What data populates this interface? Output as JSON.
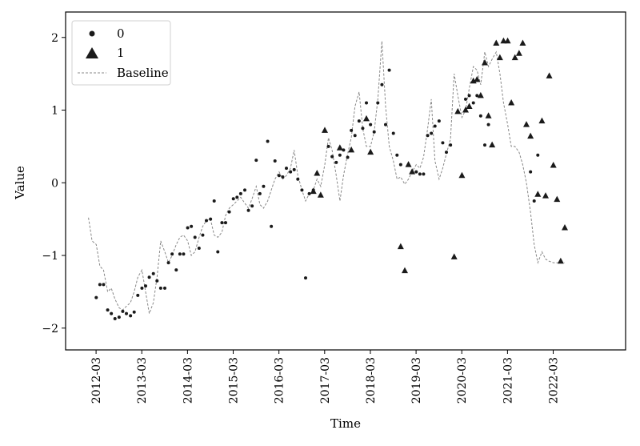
{
  "chart_data": {
    "type": "scatter",
    "title": "",
    "xlabel": "Time",
    "ylabel": "Value",
    "x_ticks": [
      "2012-03",
      "2013-03",
      "2014-03",
      "2015-03",
      "2016-03",
      "2017-03",
      "2018-03",
      "2019-03",
      "2020-03",
      "2021-03",
      "2022-03"
    ],
    "y_ticks": [
      "−2",
      "−1",
      "0",
      "1",
      "2"
    ],
    "x_range": [
      2011.5,
      2023.75
    ],
    "y_range": [
      -2.3,
      2.35
    ],
    "grid": false,
    "legend_position": "top-left",
    "legend": [
      "0",
      "1",
      "Baseline"
    ],
    "colors": {
      "marker": "#1a1a1a",
      "baseline": "#888888",
      "axis": "#000000"
    },
    "series": [
      {
        "name": "0",
        "marker": "circle",
        "x": [
          2012.17,
          2012.25,
          2012.33,
          2012.42,
          2012.5,
          2012.58,
          2012.67,
          2012.75,
          2012.83,
          2012.92,
          2013.0,
          2013.08,
          2013.17,
          2013.25,
          2013.33,
          2013.42,
          2013.5,
          2013.58,
          2013.67,
          2013.75,
          2013.83,
          2013.92,
          2014.0,
          2014.08,
          2014.17,
          2014.25,
          2014.33,
          2014.42,
          2014.5,
          2014.58,
          2014.67,
          2014.75,
          2014.83,
          2014.92,
          2015.0,
          2015.08,
          2015.17,
          2015.25,
          2015.33,
          2015.42,
          2015.5,
          2015.58,
          2015.67,
          2015.75,
          2015.83,
          2015.92,
          2016.0,
          2016.08,
          2016.17,
          2016.25,
          2016.33,
          2016.42,
          2016.5,
          2016.58,
          2016.67,
          2016.75,
          2016.83,
          2016.92,
          2017.25,
          2017.33,
          2017.42,
          2017.5,
          2017.58,
          2017.67,
          2017.75,
          2017.83,
          2017.92,
          2018.0,
          2018.08,
          2018.17,
          2018.25,
          2018.33,
          2018.42,
          2018.5,
          2018.58,
          2018.67,
          2018.75,
          2018.83,
          2019.17,
          2019.25,
          2019.33,
          2019.42,
          2019.5,
          2019.58,
          2019.67,
          2019.75,
          2019.83,
          2019.92,
          2020.25,
          2020.33,
          2020.42,
          2020.5,
          2020.58,
          2020.67,
          2020.75,
          2021.67,
          2021.75,
          2021.83
        ],
        "y": [
          -1.58,
          -1.4,
          -1.4,
          -1.75,
          -1.8,
          -1.87,
          -1.85,
          -1.77,
          -1.8,
          -1.83,
          -1.78,
          -1.55,
          -1.45,
          -1.42,
          -1.3,
          -1.25,
          -1.35,
          -1.45,
          -1.45,
          -1.1,
          -0.98,
          -1.2,
          -0.98,
          -0.98,
          -0.62,
          -0.6,
          -0.75,
          -0.9,
          -0.72,
          -0.52,
          -0.5,
          -0.25,
          -0.95,
          -0.55,
          -0.55,
          -0.4,
          -0.22,
          -0.2,
          -0.15,
          -0.1,
          -0.38,
          -0.32,
          0.31,
          -0.15,
          -0.05,
          0.57,
          -0.6,
          0.3,
          0.1,
          0.08,
          0.2,
          0.15,
          0.18,
          0.05,
          -0.1,
          -1.31,
          -0.15,
          -0.1,
          0.5,
          0.36,
          0.28,
          0.38,
          0.45,
          0.35,
          0.72,
          0.65,
          0.85,
          0.75,
          1.1,
          0.8,
          0.7,
          1.1,
          1.35,
          0.8,
          1.55,
          0.68,
          0.38,
          0.25,
          0.15,
          0.12,
          0.12,
          0.65,
          0.68,
          0.78,
          0.85,
          0.55,
          0.42,
          0.52,
          1.15,
          1.2,
          1.1,
          1.2,
          0.92,
          0.52,
          0.8,
          0.15,
          -0.25,
          0.38
        ]
      },
      {
        "name": "1",
        "marker": "triangle",
        "x": [
          2016.92,
          2017.0,
          2017.08,
          2017.17,
          2017.5,
          2017.75,
          2018.08,
          2018.17,
          2018.83,
          2018.92,
          2019.0,
          2019.08,
          2020.0,
          2020.08,
          2020.17,
          2020.25,
          2020.33,
          2020.42,
          2020.5,
          2020.58,
          2020.67,
          2020.75,
          2020.83,
          2020.92,
          2021.0,
          2021.08,
          2021.17,
          2021.25,
          2021.33,
          2021.42,
          2021.5,
          2021.58,
          2021.67,
          2021.83,
          2021.92,
          2022.0,
          2022.08,
          2022.17,
          2022.25,
          2022.33,
          2022.42
        ],
        "y": [
          -0.12,
          0.13,
          -0.17,
          0.72,
          0.48,
          0.45,
          0.88,
          0.42,
          -0.88,
          -1.21,
          0.25,
          0.15,
          -1.02,
          0.98,
          0.1,
          1.0,
          1.05,
          1.4,
          1.42,
          1.2,
          1.65,
          0.92,
          0.52,
          1.92,
          1.72,
          1.95,
          1.95,
          1.1,
          1.72,
          1.78,
          1.92,
          0.8,
          0.64,
          -0.16,
          0.85,
          -0.18,
          1.47,
          0.24,
          -0.23,
          -1.08,
          -0.62
        ]
      },
      {
        "name": "Baseline",
        "marker": "dashed-line",
        "x": [
          2012.0,
          2012.08,
          2012.17,
          2012.25,
          2012.33,
          2012.42,
          2012.5,
          2012.58,
          2012.67,
          2012.75,
          2012.83,
          2012.92,
          2013.0,
          2013.08,
          2013.17,
          2013.25,
          2013.33,
          2013.42,
          2013.5,
          2013.58,
          2013.67,
          2013.75,
          2013.83,
          2013.92,
          2014.0,
          2014.08,
          2014.17,
          2014.25,
          2014.33,
          2014.42,
          2014.5,
          2014.58,
          2014.67,
          2014.75,
          2014.83,
          2014.92,
          2015.0,
          2015.08,
          2015.17,
          2015.25,
          2015.33,
          2015.42,
          2015.5,
          2015.58,
          2015.67,
          2015.75,
          2015.83,
          2015.92,
          2016.0,
          2016.08,
          2016.17,
          2016.25,
          2016.33,
          2016.42,
          2016.5,
          2016.58,
          2016.67,
          2016.75,
          2016.83,
          2016.92,
          2017.0,
          2017.08,
          2017.17,
          2017.25,
          2017.33,
          2017.42,
          2017.5,
          2017.58,
          2017.67,
          2017.75,
          2017.83,
          2017.92,
          2018.0,
          2018.08,
          2018.17,
          2018.25,
          2018.33,
          2018.42,
          2018.5,
          2018.58,
          2018.67,
          2018.75,
          2018.83,
          2018.92,
          2019.0,
          2019.08,
          2019.17,
          2019.25,
          2019.33,
          2019.42,
          2019.5,
          2019.58,
          2019.67,
          2019.75,
          2019.83,
          2019.92,
          2020.0,
          2020.08,
          2020.17,
          2020.25,
          2020.33,
          2020.42,
          2020.5,
          2020.58,
          2020.67,
          2020.75,
          2020.83,
          2020.92,
          2021.0,
          2021.08,
          2021.17,
          2021.25,
          2021.33,
          2021.42,
          2021.5,
          2021.58,
          2021.67,
          2021.75,
          2021.83,
          2021.92,
          2022.0,
          2022.08,
          2022.17,
          2022.25,
          2022.33,
          2022.42
        ],
        "y": [
          -0.48,
          -0.8,
          -0.85,
          -1.15,
          -1.2,
          -1.5,
          -1.45,
          -1.6,
          -1.72,
          -1.75,
          -1.7,
          -1.65,
          -1.5,
          -1.3,
          -1.2,
          -1.5,
          -1.8,
          -1.65,
          -1.3,
          -0.8,
          -0.95,
          -1.1,
          -1.0,
          -0.85,
          -0.75,
          -0.72,
          -0.8,
          -1.0,
          -0.95,
          -0.75,
          -0.6,
          -0.52,
          -0.5,
          -0.72,
          -0.75,
          -0.68,
          -0.45,
          -0.35,
          -0.3,
          -0.25,
          -0.2,
          -0.28,
          -0.35,
          -0.22,
          -0.05,
          -0.3,
          -0.35,
          -0.25,
          -0.1,
          0.05,
          0.15,
          0.05,
          0.1,
          0.2,
          0.45,
          0.1,
          -0.1,
          -0.25,
          -0.15,
          -0.1,
          0.05,
          -0.05,
          0.25,
          0.62,
          0.45,
          0.1,
          -0.25,
          0.1,
          0.4,
          0.62,
          1.05,
          1.25,
          0.75,
          0.5,
          0.5,
          0.7,
          1.15,
          1.95,
          1.05,
          0.5,
          0.3,
          0.05,
          0.08,
          -0.02,
          0.05,
          0.15,
          0.25,
          0.2,
          0.35,
          0.75,
          1.15,
          0.3,
          0.05,
          0.2,
          0.4,
          0.6,
          1.5,
          1.2,
          0.9,
          1.0,
          1.3,
          1.6,
          1.55,
          1.35,
          1.8,
          1.6,
          1.7,
          1.8,
          1.5,
          1.1,
          0.8,
          0.5,
          0.5,
          0.42,
          0.25,
          0.0,
          -0.4,
          -0.85,
          -1.1,
          -0.95,
          -1.05,
          -1.08,
          -1.1,
          -1.1,
          -1.1,
          -1.1
        ]
      }
    ]
  }
}
